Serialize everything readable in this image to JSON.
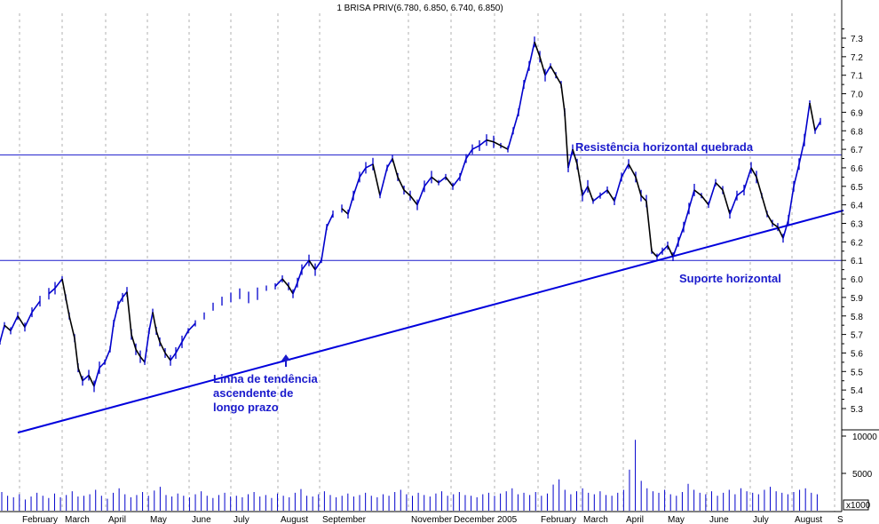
{
  "chart_data": {
    "type": "line",
    "title": "1 BRISA PRIV(6.780, 6.850, 6.740, 6.850)",
    "price_axis": {
      "ticks": [
        "5.3",
        "5.4",
        "5.5",
        "5.6",
        "5.7",
        "5.8",
        "5.9",
        "6.0",
        "6.1",
        "6.2",
        "6.3",
        "6.4",
        "6.5",
        "6.6",
        "6.7",
        "6.8",
        "6.9",
        "7.0",
        "7.1",
        "7.2",
        "7.3"
      ],
      "ylim": [
        5.22,
        7.4
      ]
    },
    "volume_axis": {
      "ticks": [
        "5000",
        "10000"
      ],
      "unit_label": "x1000",
      "ylim": [
        0,
        12500
      ]
    },
    "x_labels": [
      "February",
      "March",
      "April",
      "May",
      "June",
      "July",
      "August",
      "September",
      "November",
      "December",
      "2005",
      "February",
      "March",
      "April",
      "May",
      "June",
      "July",
      "August",
      "S"
    ],
    "series": [
      {
        "values": [
          [
            0,
            5.66
          ],
          [
            5,
            5.75
          ],
          [
            12,
            5.72
          ],
          [
            20,
            5.8
          ],
          [
            28,
            5.74
          ],
          [
            36,
            5.82
          ],
          [
            45,
            5.88
          ],
          [
            55,
            5.92
          ],
          [
            62,
            5.95
          ],
          [
            70,
            6.0
          ],
          [
            74,
            5.9
          ],
          [
            78,
            5.8
          ],
          [
            84,
            5.68
          ],
          [
            88,
            5.52
          ],
          [
            93,
            5.45
          ],
          [
            100,
            5.48
          ],
          [
            106,
            5.42
          ],
          [
            112,
            5.52
          ],
          [
            118,
            5.55
          ],
          [
            124,
            5.62
          ],
          [
            128,
            5.76
          ],
          [
            133,
            5.86
          ],
          [
            138,
            5.9
          ],
          [
            143,
            5.93
          ],
          [
            148,
            5.7
          ],
          [
            153,
            5.62
          ],
          [
            158,
            5.58
          ],
          [
            163,
            5.55
          ],
          [
            168,
            5.72
          ],
          [
            172,
            5.82
          ],
          [
            176,
            5.72
          ],
          [
            180,
            5.66
          ],
          [
            186,
            5.6
          ],
          [
            192,
            5.56
          ],
          [
            198,
            5.6
          ],
          [
            205,
            5.66
          ],
          [
            212,
            5.72
          ],
          [
            220,
            5.76
          ],
          [
            230,
            5.8
          ],
          [
            240,
            5.85
          ],
          [
            250,
            5.88
          ],
          [
            260,
            5.9
          ],
          [
            270,
            5.92
          ],
          [
            280,
            5.9
          ],
          [
            290,
            5.92
          ],
          [
            300,
            5.95
          ],
          [
            310,
            5.96
          ],
          [
            318,
            6.0
          ],
          [
            325,
            5.96
          ],
          [
            330,
            5.92
          ],
          [
            335,
            5.98
          ],
          [
            340,
            6.05
          ],
          [
            348,
            6.1
          ],
          [
            355,
            6.05
          ],
          [
            362,
            6.1
          ],
          [
            368,
            6.28
          ],
          [
            375,
            6.35
          ],
          [
            385,
            6.38
          ],
          [
            392,
            6.35
          ],
          [
            398,
            6.45
          ],
          [
            405,
            6.55
          ],
          [
            412,
            6.6
          ],
          [
            420,
            6.62
          ],
          [
            428,
            6.45
          ],
          [
            436,
            6.6
          ],
          [
            442,
            6.65
          ],
          [
            448,
            6.55
          ],
          [
            455,
            6.48
          ],
          [
            462,
            6.45
          ],
          [
            470,
            6.4
          ],
          [
            478,
            6.5
          ],
          [
            486,
            6.55
          ],
          [
            494,
            6.52
          ],
          [
            502,
            6.55
          ],
          [
            510,
            6.5
          ],
          [
            518,
            6.55
          ],
          [
            525,
            6.65
          ],
          [
            532,
            6.7
          ],
          [
            540,
            6.72
          ],
          [
            548,
            6.75
          ],
          [
            556,
            6.74
          ],
          [
            564,
            6.72
          ],
          [
            572,
            6.7
          ],
          [
            578,
            6.8
          ],
          [
            584,
            6.9
          ],
          [
            590,
            7.05
          ],
          [
            596,
            7.15
          ],
          [
            602,
            7.28
          ],
          [
            608,
            7.2
          ],
          [
            614,
            7.1
          ],
          [
            620,
            7.15
          ],
          [
            626,
            7.1
          ],
          [
            632,
            7.05
          ],
          [
            636,
            6.9
          ],
          [
            640,
            6.6
          ],
          [
            645,
            6.7
          ],
          [
            650,
            6.62
          ],
          [
            656,
            6.45
          ],
          [
            662,
            6.5
          ],
          [
            668,
            6.42
          ],
          [
            676,
            6.45
          ],
          [
            684,
            6.48
          ],
          [
            692,
            6.42
          ],
          [
            700,
            6.55
          ],
          [
            708,
            6.62
          ],
          [
            716,
            6.55
          ],
          [
            722,
            6.45
          ],
          [
            728,
            6.42
          ],
          [
            734,
            6.15
          ],
          [
            740,
            6.12
          ],
          [
            746,
            6.15
          ],
          [
            752,
            6.18
          ],
          [
            758,
            6.12
          ],
          [
            764,
            6.2
          ],
          [
            770,
            6.28
          ],
          [
            776,
            6.38
          ],
          [
            782,
            6.48
          ],
          [
            790,
            6.45
          ],
          [
            798,
            6.4
          ],
          [
            806,
            6.52
          ],
          [
            814,
            6.48
          ],
          [
            822,
            6.35
          ],
          [
            830,
            6.45
          ],
          [
            838,
            6.48
          ],
          [
            846,
            6.6
          ],
          [
            852,
            6.55
          ],
          [
            858,
            6.45
          ],
          [
            864,
            6.35
          ],
          [
            870,
            6.3
          ],
          [
            876,
            6.28
          ],
          [
            882,
            6.22
          ],
          [
            888,
            6.32
          ],
          [
            894,
            6.5
          ],
          [
            900,
            6.62
          ],
          [
            906,
            6.75
          ],
          [
            912,
            6.95
          ],
          [
            918,
            6.8
          ],
          [
            924,
            6.85
          ]
        ]
      }
    ],
    "volume": [
      2.5,
      2.0,
      1.8,
      2.2,
      1.5,
      1.9,
      2.4,
      2.0,
      1.7,
      2.3,
      1.8,
      2.1,
      2.6,
      1.9,
      2.0,
      2.2,
      2.8,
      2.0,
      1.6,
      2.4,
      3.0,
      2.2,
      1.8,
      2.1,
      2.5,
      2.0,
      2.7,
      3.2,
      2.1,
      1.9,
      2.3,
      2.0,
      1.8,
      2.2,
      2.6,
      2.0,
      1.7,
      2.1,
      2.4,
      1.9,
      2.0,
      1.8,
      2.2,
      2.5,
      1.9,
      2.1,
      1.7,
      2.3,
      2.0,
      1.8,
      2.4,
      2.9,
      2.0,
      1.9,
      2.2,
      2.6,
      2.1,
      1.8,
      2.0,
      2.3,
      1.9,
      2.1,
      2.4,
      2.0,
      1.8,
      2.2,
      2.0,
      2.5,
      2.8,
      2.2,
      2.0,
      2.4,
      2.1,
      1.9,
      2.3,
      2.6,
      2.0,
      2.2,
      2.5,
      2.1,
      2.0,
      1.8,
      2.2,
      2.4,
      2.0,
      2.3,
      2.6,
      3.0,
      2.2,
      2.4,
      2.1,
      2.5,
      2.0,
      2.3,
      3.5,
      4.2,
      2.8,
      2.2,
      2.6,
      3.0,
      2.4,
      2.2,
      2.6,
      2.1,
      2.0,
      2.4,
      2.8,
      5.5,
      9.5,
      4.0,
      3.0,
      2.6,
      2.4,
      2.8,
      2.2,
      2.0,
      2.5,
      3.6,
      2.8,
      2.4,
      2.2,
      2.6,
      2.0,
      2.4,
      2.8,
      2.2,
      3.0,
      2.6,
      2.4,
      2.2,
      2.8,
      3.2,
      2.6,
      2.4,
      2.2,
      2.5,
      2.8,
      3.0,
      2.4,
      2.2
    ],
    "annotations": [
      {
        "text": "Resistência horizontal quebrada"
      },
      {
        "text": "Suporte horizontal"
      },
      {
        "lines": [
          "Linha de tendência",
          "ascendente de",
          "longo prazo"
        ]
      }
    ],
    "resistance_level": 6.67,
    "support_level": 6.1,
    "trendline": [
      [
        20,
        5.17
      ],
      [
        950,
        6.37
      ]
    ],
    "colors": {
      "series": "#0000cc",
      "level_lines": "#1a1acc",
      "trendline": "#0000dd",
      "annotations": "#1a1acc",
      "grid": "#b0b0b0"
    }
  }
}
